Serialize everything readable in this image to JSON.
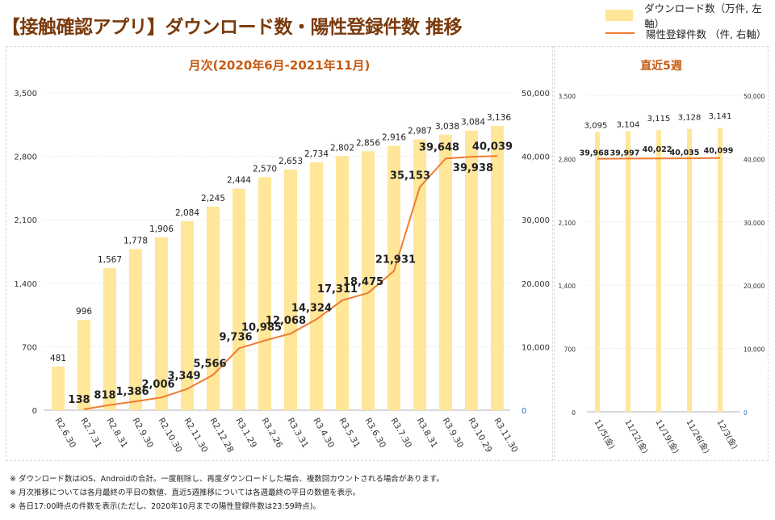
{
  "header": {
    "title": "【接触確認アプリ】ダウンロード数・陽性登録件数 推移"
  },
  "legend": {
    "downloads_label": "ダウンロード数（万件, 左軸）",
    "positives_label": "陽性登録件数 （件, 右軸）"
  },
  "colors": {
    "bar": "#ffe699",
    "line": "#ed7d31",
    "panel_title": "#c55a11",
    "title": "#7a3a0c"
  },
  "notes": [
    "※ ダウンロード数はiOS、Androidの合計。一度削除し、再度ダウンロードした場合、複数回カウントされる場合があります。",
    "※ 月次推移については各月最終の平日の数値、直近5週推移については各週最終の平日の数値を表示。",
    "※ 各日17:00時点の件数を表示(ただし、2020年10月までの陽性登録件数は23:59時点)。"
  ],
  "chart_data": [
    {
      "type": "bar+line",
      "title": "月次(2020年6月-2021年11月)",
      "categories": [
        "R2.6.30",
        "R2.7.31",
        "R2.8.31",
        "R2.9.30",
        "R2.10.30",
        "R2.11.30",
        "R2.12.28",
        "R3.1.29",
        "R3.2.26",
        "R3.3.31",
        "R3.4.30",
        "R3.5.31",
        "R3.6.30",
        "R3.7.30",
        "R3.8.31",
        "R3.9.30",
        "R3.10.29",
        "R3.11.30"
      ],
      "series": [
        {
          "name": "ダウンロード数（万件, 左軸）",
          "type": "bar",
          "axis": "left",
          "values": [
            481,
            996,
            1567,
            1778,
            1906,
            2084,
            2245,
            2444,
            2570,
            2653,
            2734,
            2802,
            2856,
            2916,
            2987,
            3038,
            3084,
            3136
          ],
          "labels": [
            "481",
            "996",
            "1,567",
            "1,778",
            "1,906",
            "2,084",
            "2,245",
            "2,444",
            "2,570",
            "2,653",
            "2,734",
            "2,802",
            "2,856",
            "2,916",
            "2,987",
            "3,038",
            "3,084",
            "3,136"
          ]
        },
        {
          "name": "陽性登録件数 （件, 右軸）",
          "type": "line",
          "axis": "right",
          "values": [
            null,
            138,
            818,
            1386,
            2006,
            3349,
            5566,
            9736,
            10985,
            12068,
            14324,
            17311,
            18475,
            21931,
            35153,
            39648,
            39938,
            40039
          ],
          "labels": [
            null,
            "138",
            "818",
            "1,386",
            "2,006",
            "3,349",
            "5,566",
            "9,736",
            "10,985",
            "12,068",
            "14,324",
            "17,311",
            "18,475",
            "21,931",
            "35,153",
            "39,648",
            "39,938",
            "40,039"
          ]
        }
      ],
      "left_axis": {
        "range": [
          0,
          3500
        ],
        "ticks": [
          "0",
          "700",
          "1,400",
          "2,100",
          "2,800",
          "3,500"
        ]
      },
      "right_axis": {
        "range": [
          0,
          50000
        ],
        "ticks": [
          "0",
          "10,000",
          "20,000",
          "30,000",
          "40,000",
          "50,000"
        ]
      },
      "grid": true
    },
    {
      "type": "bar+line",
      "title": "直近5週",
      "categories": [
        "11/5(金)",
        "11/12(金)",
        "11/19(金)",
        "11/26(金)",
        "12/3(金)"
      ],
      "series": [
        {
          "name": "ダウンロード数（万件, 左軸）",
          "type": "bar",
          "axis": "left",
          "values": [
            3095,
            3104,
            3115,
            3128,
            3141
          ],
          "labels": [
            "3,095",
            "3,104",
            "3,115",
            "3,128",
            "3,141"
          ]
        },
        {
          "name": "陽性登録件数 （件, 右軸）",
          "type": "line",
          "axis": "right",
          "values": [
            39968,
            39997,
            40022,
            40035,
            40099
          ],
          "labels": [
            "39,968",
            "39,997",
            "40,022",
            "40,035",
            "40,099"
          ]
        }
      ],
      "left_axis": {
        "range": [
          0,
          3500
        ],
        "ticks": [
          "0",
          "700",
          "1,400",
          "2,100",
          "2,800",
          "3,500"
        ]
      },
      "right_axis": {
        "range": [
          0,
          50000
        ],
        "ticks": [
          "0",
          "10,000",
          "20,000",
          "30,000",
          "40,000",
          "50,000"
        ]
      },
      "grid": true
    }
  ]
}
